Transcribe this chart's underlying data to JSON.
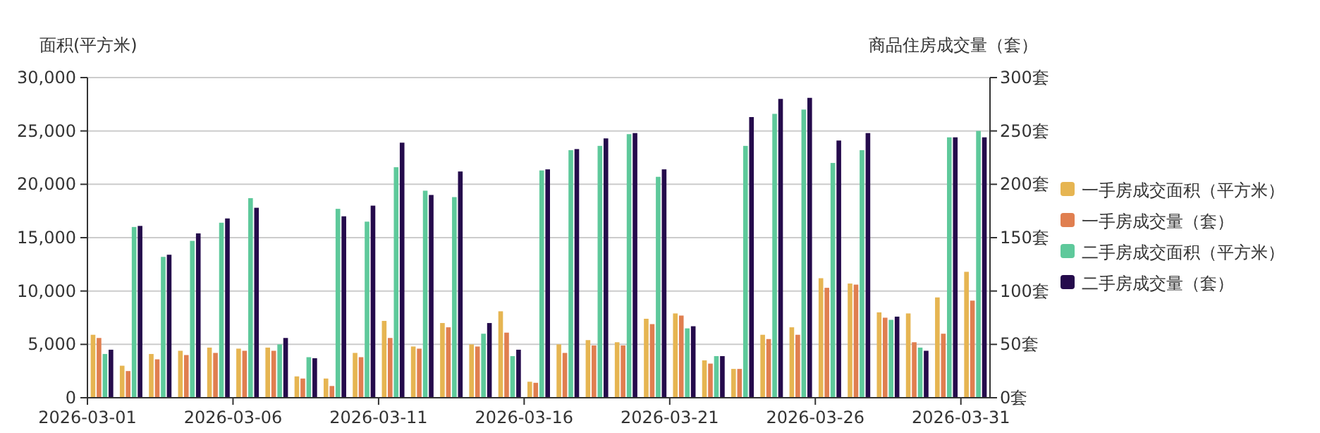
{
  "chart_data": {
    "type": "bar",
    "ylabel": "面积(平方米)",
    "y2label": "商品住房成交量（套）",
    "x": [
      "2026-03-01T12:00",
      "2026-03-02T12:00",
      "2026-03-03T12:00",
      "2026-03-04T12:00",
      "2026-03-05T12:00",
      "2026-03-06T12:00",
      "2026-03-07T12:00",
      "2026-03-08T12:00",
      "2026-03-09T12:00",
      "2026-03-10T12:00",
      "2026-03-11T12:00",
      "2026-03-12T12:00",
      "2026-03-13T12:00",
      "2026-03-14T12:00",
      "2026-03-15T12:00",
      "2026-03-16T12:00",
      "2026-03-17T12:00",
      "2026-03-18T12:00",
      "2026-03-19T12:00",
      "2026-03-20T12:00",
      "2026-03-21T12:00",
      "2026-03-22T12:00",
      "2026-03-23T12:00",
      "2026-03-24T12:00",
      "2026-03-25T12:00",
      "2026-03-26T12:00",
      "2026-03-27T12:00",
      "2026-03-28T12:00",
      "2026-03-29T12:00",
      "2026-03-30T12:00",
      "2026-03-31T12:00"
    ],
    "xlim": [
      "2026-03-01",
      "2026-04-01"
    ],
    "xticks": [
      "2026-03-01",
      "2026-03-06",
      "2026-03-11",
      "2026-03-16",
      "2026-03-21",
      "2026-03-26",
      "2026-03-31"
    ],
    "ylim": [
      0,
      30000
    ],
    "yticks": [
      0,
      {
        "value": 5000,
        "label": "5,000"
      },
      {
        "value": 10000,
        "label": "10,000"
      },
      {
        "value": 15000,
        "label": "15,000"
      },
      {
        "value": 20000,
        "label": "20,000"
      },
      {
        "value": 25000,
        "label": "25,000"
      },
      {
        "value": 30000,
        "label": "30,000"
      }
    ],
    "y2lim": [
      0,
      300
    ],
    "y2ticks": [
      {
        "value": 0,
        "label": "0套"
      },
      {
        "value": 50,
        "label": "50套"
      },
      {
        "value": 100,
        "label": "100套"
      },
      {
        "value": 150,
        "label": "150套"
      },
      {
        "value": 200,
        "label": "200套"
      },
      {
        "value": 250,
        "label": "250套"
      },
      {
        "value": 300,
        "label": "300套"
      }
    ],
    "grid": "y",
    "legend": "right",
    "series": [
      {
        "name": "一手房成交面积（平方米）",
        "color": "#e6b552",
        "values": [
          5900,
          3000,
          4100,
          4400,
          4700,
          4600,
          4700,
          2000,
          1800,
          4200,
          7200,
          4800,
          7000,
          5000,
          8100,
          1500,
          5000,
          5400,
          5200,
          7400,
          7900,
          3500,
          2700,
          5900,
          6600,
          11200,
          10700,
          8000,
          7900,
          9400,
          11800
        ]
      },
      {
        "name": "一手房成交量（套）",
        "color": "#e07f50",
        "axis": "y2",
        "values": [
          56,
          25,
          36,
          40,
          42,
          44,
          44,
          18,
          11,
          38,
          56,
          46,
          66,
          48,
          61,
          14,
          42,
          49,
          49,
          69,
          77,
          32,
          27,
          55,
          59,
          103,
          106,
          75,
          52,
          60,
          91
        ]
      },
      {
        "name": "二手房成交面积（平方米）",
        "color": "#5ec99b",
        "values": [
          4100,
          16000,
          13200,
          14700,
          16400,
          18700,
          5000,
          3800,
          17700,
          16500,
          21600,
          19400,
          18800,
          6000,
          3900,
          21300,
          23200,
          23600,
          24700,
          20700,
          6500,
          3900,
          23600,
          26600,
          27000,
          22000,
          23200,
          7300,
          4700,
          24400,
          25000
        ]
      },
      {
        "name": "二手房成交量（套）",
        "color": "#250b4c",
        "axis": "y2",
        "values": [
          45,
          161,
          134,
          154,
          168,
          178,
          56,
          37,
          170,
          180,
          239,
          190,
          212,
          70,
          45,
          214,
          233,
          243,
          248,
          214,
          67,
          39,
          263,
          280,
          281,
          241,
          248,
          76,
          44,
          244,
          244
        ]
      }
    ]
  }
}
